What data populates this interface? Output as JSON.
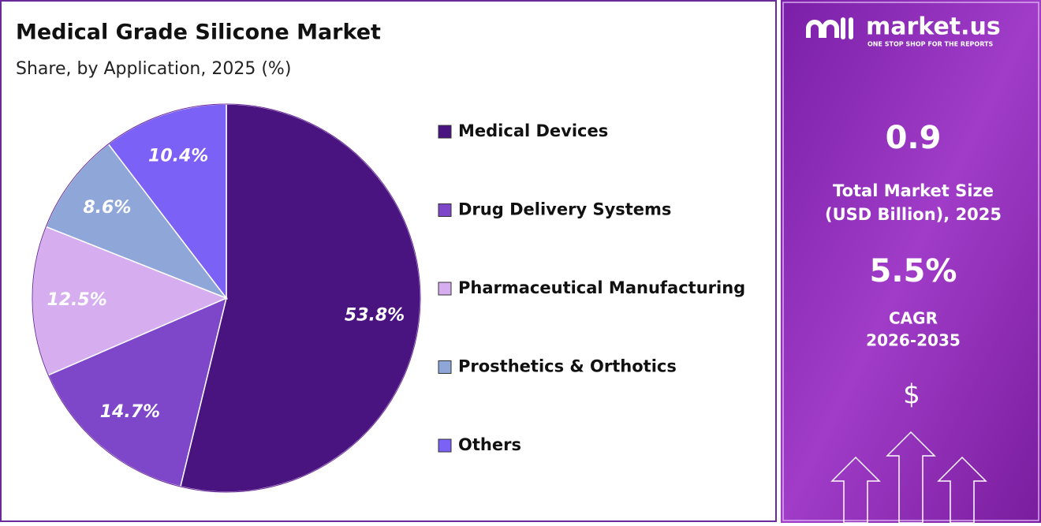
{
  "chart_data": {
    "type": "pie",
    "title": "Medical Grade Silicone Market",
    "subtitle": "Share, by Application, 2025 (%)",
    "categories": [
      "Medical Devices",
      "Drug Delivery Systems",
      "Pharmaceutical Manufacturing",
      "Prosthetics & Orthotics",
      "Others"
    ],
    "values": [
      53.8,
      14.7,
      12.5,
      8.6,
      10.4
    ],
    "value_labels": [
      "53.8%",
      "14.7%",
      "12.5%",
      "8.6%",
      "10.4%"
    ],
    "colors": [
      "#4a1480",
      "#7e47c9",
      "#d6aef0",
      "#8fa6d8",
      "#7b61f5"
    ],
    "legend": "right"
  },
  "side_panel": {
    "brand": "market.us",
    "tagline": "ONE STOP SHOP FOR THE REPORTS",
    "market_size": "0.9",
    "market_size_label": [
      "Total Market Size",
      "(USD Billion), 2025"
    ],
    "cagr": "5.5%",
    "cagr_label": [
      "CAGR",
      "2026-2035"
    ],
    "currency": "$"
  }
}
